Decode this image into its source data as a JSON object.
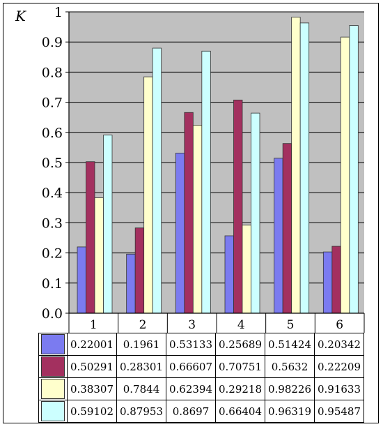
{
  "chart_data": {
    "type": "bar",
    "ylabel": "K",
    "ylim": [
      0,
      1
    ],
    "yticks": [
      "0.0",
      "0.1",
      "0.2",
      "0.3",
      "0.4",
      "0.5",
      "0.6",
      "0.7",
      "0.8",
      "0.9",
      "1"
    ],
    "categories": [
      "1",
      "2",
      "3",
      "4",
      "5",
      "6"
    ],
    "grid": "horizontal",
    "legend": "data table below chart",
    "series": [
      {
        "color": "#7b7bf0",
        "values": [
          0.22001,
          0.1961,
          0.53133,
          0.25689,
          0.51424,
          0.20342
        ],
        "labels": [
          "0.22001",
          "0.1961",
          "0.53133",
          "0.25689",
          "0.51424",
          "0.20342"
        ]
      },
      {
        "color": "#a3305f",
        "values": [
          0.50291,
          0.28301,
          0.66607,
          0.70751,
          0.5632,
          0.22209
        ],
        "labels": [
          "0.50291",
          "0.28301",
          "0.66607",
          "0.70751",
          "0.5632",
          "0.22209"
        ]
      },
      {
        "color": "#ffffcc",
        "values": [
          0.38307,
          0.7844,
          0.62394,
          0.29218,
          0.98226,
          0.91633
        ],
        "labels": [
          "0.38307",
          "0.7844",
          "0.62394",
          "0.29218",
          "0.98226",
          "0.91633"
        ]
      },
      {
        "color": "#ccffff",
        "values": [
          0.59102,
          0.87953,
          0.8697,
          0.66404,
          0.96319,
          0.95487
        ],
        "labels": [
          "0.59102",
          "0.87953",
          "0.8697",
          "0.66404",
          "0.96319",
          "0.95487"
        ]
      }
    ],
    "plot_background": "#c0c0c0"
  }
}
